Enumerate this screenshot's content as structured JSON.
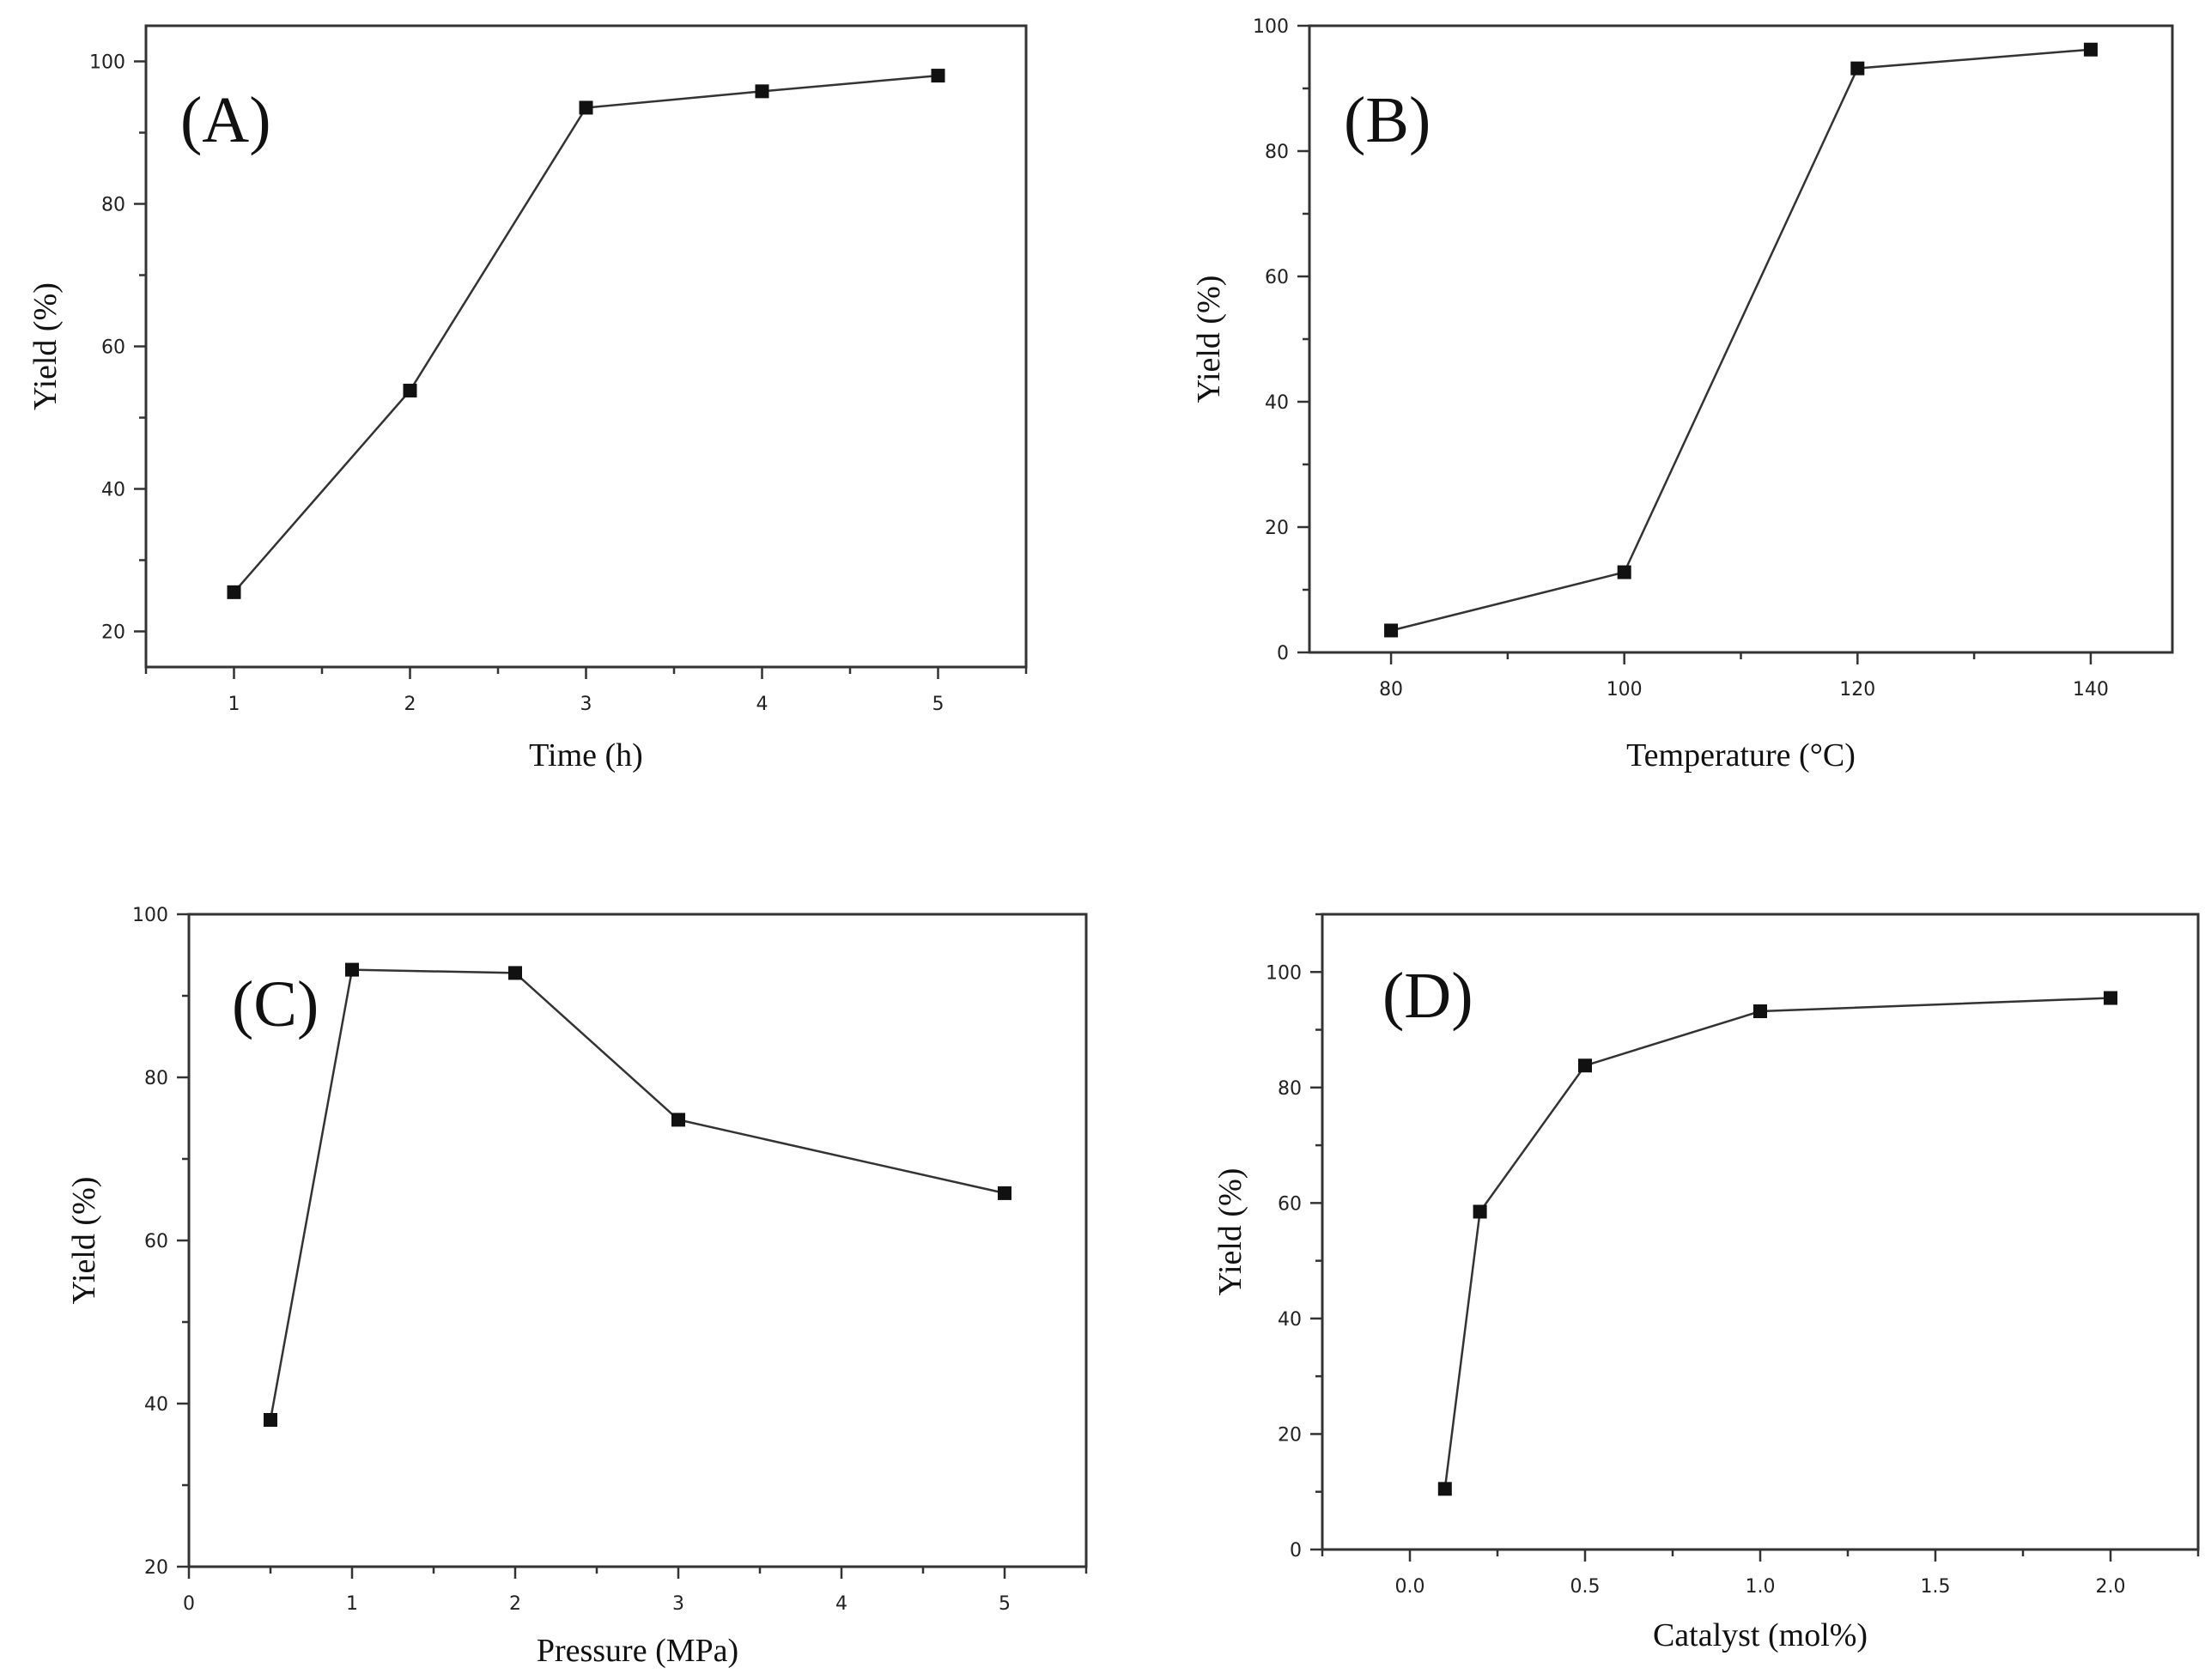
{
  "chart_data": [
    {
      "type": "line",
      "panel_label": "(A)",
      "xlabel": "Time (h)",
      "ylabel": "Yield (%)",
      "x": [
        1,
        2,
        3,
        4,
        5
      ],
      "series": [
        {
          "name": "Yield",
          "values": [
            25.5,
            53.8,
            93.5,
            95.8,
            98.0
          ]
        }
      ],
      "xlim": [
        0.5,
        5.5
      ],
      "ylim": [
        15,
        105
      ],
      "xticks": [
        1,
        2,
        3,
        4,
        5
      ],
      "xtick_labels": [
        "1",
        "2",
        "3",
        "4",
        "5"
      ],
      "yticks": [
        20,
        40,
        60,
        80,
        100
      ],
      "ytick_labels": [
        "20",
        "40",
        "60",
        "80",
        "100"
      ],
      "grid": false
    },
    {
      "type": "line",
      "panel_label": "(B)",
      "xlabel": "Temperature (°C)",
      "ylabel": "Yield (%)",
      "x": [
        80,
        100,
        120,
        140
      ],
      "series": [
        {
          "name": "Yield",
          "values": [
            3.5,
            12.8,
            93.2,
            96.2
          ]
        }
      ],
      "xlim": [
        73,
        147
      ],
      "ylim": [
        0,
        100
      ],
      "xticks": [
        80,
        100,
        120,
        140
      ],
      "xtick_labels": [
        "80",
        "100",
        "120",
        "140"
      ],
      "yticks": [
        0,
        20,
        40,
        60,
        80,
        100
      ],
      "ytick_labels": [
        "0",
        "20",
        "40",
        "60",
        "80",
        "100"
      ],
      "grid": false
    },
    {
      "type": "line",
      "panel_label": "(C)",
      "xlabel": "Pressure (MPa)",
      "ylabel": "Yield (%)",
      "x": [
        0.5,
        1,
        2,
        3,
        5
      ],
      "series": [
        {
          "name": "Yield",
          "values": [
            38.0,
            93.2,
            92.8,
            74.8,
            65.8
          ]
        }
      ],
      "xlim": [
        0,
        5.5
      ],
      "ylim": [
        20,
        100
      ],
      "xticks": [
        0,
        1,
        2,
        3,
        4,
        5
      ],
      "xtick_labels": [
        "0",
        "1",
        "2",
        "3",
        "4",
        "5"
      ],
      "yticks": [
        20,
        40,
        60,
        80,
        100
      ],
      "ytick_labels": [
        "20",
        "40",
        "60",
        "80",
        "100"
      ],
      "grid": false
    },
    {
      "type": "line",
      "panel_label": "(D)",
      "xlabel": "Catalyst (mol%)",
      "ylabel": "Yield (%)",
      "x": [
        0.1,
        0.2,
        0.5,
        1.0,
        2.0
      ],
      "series": [
        {
          "name": "Yield",
          "values": [
            10.5,
            58.5,
            83.8,
            93.2,
            95.5
          ]
        }
      ],
      "xlim": [
        -0.25,
        2.25
      ],
      "ylim": [
        0,
        110
      ],
      "xticks": [
        0,
        0.5,
        1,
        1.5,
        2
      ],
      "xtick_labels": [
        "0.0",
        "0.5",
        "1.0",
        "1.5",
        "2.0"
      ],
      "yticks": [
        0,
        20,
        40,
        60,
        80,
        100
      ],
      "ytick_labels": [
        "0",
        "20",
        "40",
        "60",
        "80",
        "100"
      ],
      "grid": false
    }
  ]
}
